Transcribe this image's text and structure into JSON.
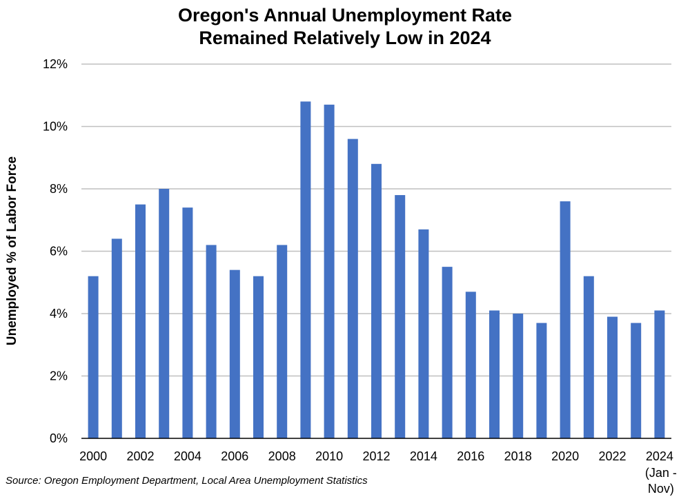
{
  "chart_data": {
    "type": "bar",
    "title_line1": "Oregon's Annual Unemployment Rate",
    "title_line2": "Remained Relatively Low in 2024",
    "ylabel": "Unemployed % of Labor Force",
    "xlabel": "",
    "ylim": [
      0,
      12
    ],
    "ytick_values": [
      0,
      2,
      4,
      6,
      8,
      10,
      12
    ],
    "ytick_labels": [
      "0%",
      "2%",
      "4%",
      "6%",
      "8%",
      "10%",
      "12%"
    ],
    "categories": [
      "2000",
      "2001",
      "2002",
      "2003",
      "2004",
      "2005",
      "2006",
      "2007",
      "2008",
      "2009",
      "2010",
      "2011",
      "2012",
      "2013",
      "2014",
      "2015",
      "2016",
      "2017",
      "2018",
      "2019",
      "2020",
      "2021",
      "2022",
      "2023",
      "2024"
    ],
    "values": [
      5.2,
      6.4,
      7.5,
      8.0,
      7.4,
      6.2,
      5.4,
      5.2,
      6.2,
      10.8,
      10.7,
      9.6,
      8.8,
      7.8,
      6.7,
      5.5,
      4.7,
      4.1,
      4.0,
      3.7,
      7.6,
      5.2,
      3.9,
      3.7,
      4.1
    ],
    "xtick_labels": [
      "2000",
      "2002",
      "2004",
      "2006",
      "2008",
      "2010",
      "2012",
      "2014",
      "2016",
      "2018",
      "2020",
      "2022",
      "2024"
    ],
    "last_label_note": [
      "(Jan -",
      "Nov)"
    ],
    "bar_color": "#4472C4",
    "grid": true,
    "legend": "none",
    "source": "Source: Oregon Employment Department, Local Area Unemployment Statistics"
  }
}
